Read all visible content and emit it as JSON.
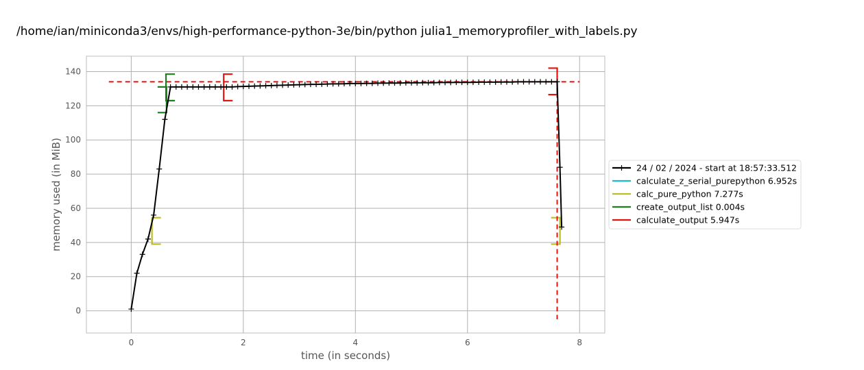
{
  "chart_data": {
    "type": "line",
    "title": "/home/ian/miniconda3/envs/high-performance-python-3e/bin/python julia1_memoryprofiler_with_labels.py",
    "xlabel": "time (in seconds)",
    "ylabel": "memory used (in MiB)",
    "xlim": [
      -0.8,
      8.45
    ],
    "ylim": [
      -13,
      149
    ],
    "xticks": [
      0,
      2,
      4,
      6,
      8
    ],
    "yticks": [
      0,
      20,
      40,
      60,
      80,
      100,
      120,
      140
    ],
    "grid": true,
    "legend_placement": "center-right outside",
    "max_memory_line": {
      "value": 134,
      "x_start": -0.4,
      "x_end": 8.0,
      "color": "#e8120c"
    },
    "series": [
      {
        "name": "24 / 02 / 2024 - start at 18:57:33.512",
        "color": "#000000",
        "marker": "+",
        "x": [
          0.0,
          0.1,
          0.2,
          0.3,
          0.4,
          0.5,
          0.6,
          0.7,
          0.8,
          0.9,
          1.0,
          1.1,
          1.2,
          1.3,
          1.4,
          1.5,
          1.6,
          1.7,
          1.8,
          1.9,
          2.0,
          2.1,
          2.2,
          2.3,
          2.4,
          2.5,
          2.6,
          2.7,
          2.8,
          2.9,
          3.0,
          3.1,
          3.2,
          3.3,
          3.4,
          3.5,
          3.6,
          3.7,
          3.8,
          3.9,
          4.0,
          4.1,
          4.2,
          4.3,
          4.4,
          4.5,
          4.6,
          4.7,
          4.8,
          4.9,
          5.0,
          5.1,
          5.2,
          5.3,
          5.4,
          5.5,
          5.6,
          5.7,
          5.8,
          5.9,
          6.0,
          6.1,
          6.2,
          6.3,
          6.4,
          6.5,
          6.6,
          6.7,
          6.8,
          6.9,
          7.0,
          7.1,
          7.2,
          7.3,
          7.4,
          7.5,
          7.6,
          7.65,
          7.68
        ],
        "y": [
          1,
          22,
          33,
          42,
          56,
          83,
          112,
          131,
          131,
          131,
          131,
          131,
          131,
          131,
          131,
          131,
          131,
          131,
          131,
          131.2,
          131.3,
          131.4,
          131.5,
          131.6,
          131.7,
          131.8,
          131.9,
          132,
          132.1,
          132.2,
          132.3,
          132.4,
          132.5,
          132.5,
          132.6,
          132.7,
          132.8,
          132.8,
          132.9,
          133,
          133,
          133,
          133.1,
          133.1,
          133.2,
          133.2,
          133.3,
          133.3,
          133.3,
          133.4,
          133.4,
          133.4,
          133.5,
          133.5,
          133.5,
          133.6,
          133.6,
          133.6,
          133.7,
          133.7,
          133.7,
          133.7,
          133.8,
          133.8,
          133.8,
          133.8,
          133.9,
          133.9,
          133.9,
          134,
          134,
          134,
          134,
          134,
          134,
          134,
          134,
          84,
          49
        ]
      }
    ],
    "function_brackets": [
      {
        "name": "calculate_z_serial_purepython 6.952s",
        "color": "#17becf",
        "intervals": []
      },
      {
        "name": "calc_pure_python 7.277s",
        "color": "#bcbd22",
        "intervals": [
          {
            "x_start": 0.37,
            "x_end": 7.65,
            "y_low": 39,
            "y_high": 54.5
          }
        ]
      },
      {
        "name": "create_output_list 0.004s",
        "color": "#1a7f1a",
        "intervals": [
          {
            "x_start": 0.62,
            "x_end": 0.63,
            "y_low": 123,
            "y_high": 138.5,
            "y_low_end": 116,
            "y_high_end": 131
          }
        ]
      },
      {
        "name": "calculate_output 5.947s",
        "color": "#e8120c",
        "intervals": [
          {
            "x_start": 1.65,
            "x_end": 7.6,
            "y_low": 123,
            "y_high": 138.5,
            "y_low_end": 126.5,
            "y_high_end": 142
          }
        ]
      }
    ],
    "end_vertical_line": {
      "x": 7.6,
      "y_low": -5,
      "y_high": 142,
      "color": "#e8120c"
    }
  }
}
